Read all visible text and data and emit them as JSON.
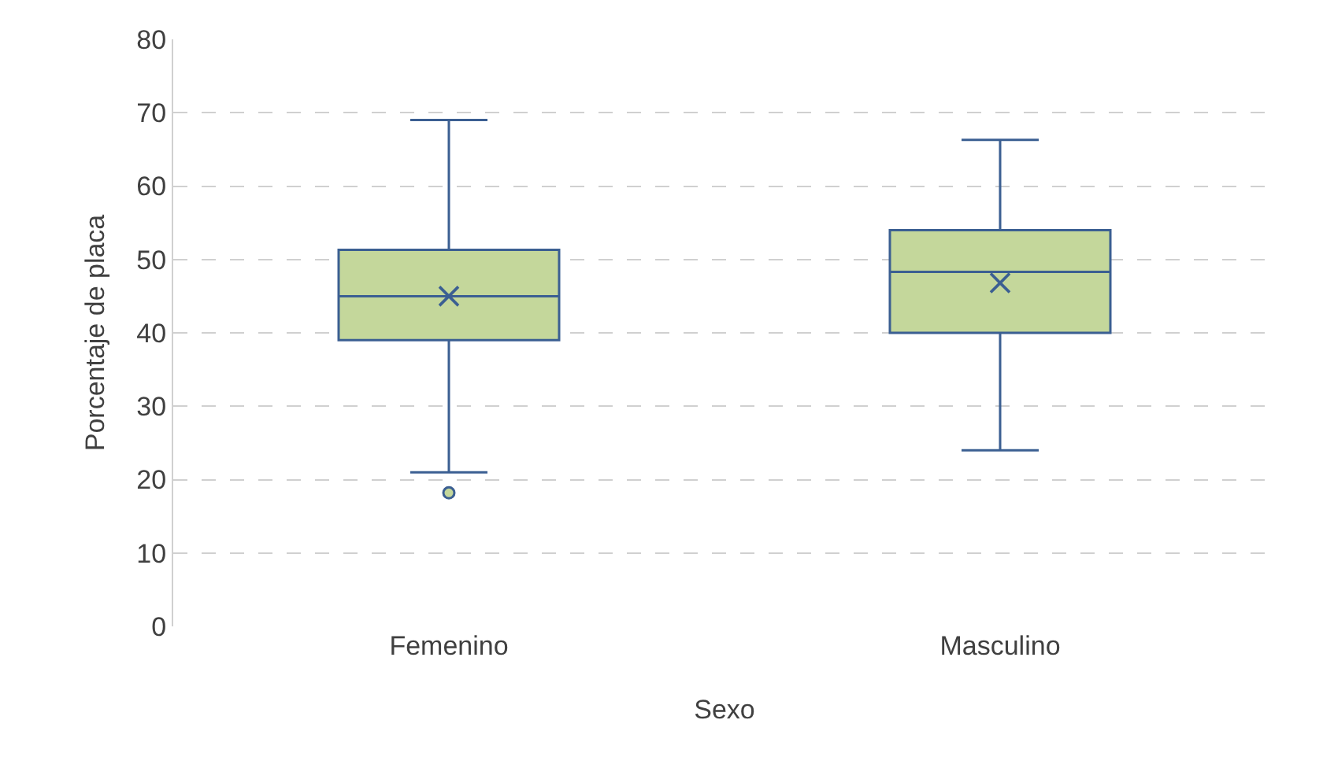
{
  "chart_data": {
    "type": "box",
    "categories": [
      "Femenino",
      "Masculino"
    ],
    "xlabel": "Sexo",
    "ylabel": "Porcentaje de placa",
    "ylim": [
      0,
      80
    ],
    "yticks": [
      0,
      10,
      20,
      30,
      40,
      50,
      60,
      70,
      80
    ],
    "grid": "y",
    "color": "#c4d79b",
    "boxes": [
      {
        "low": 21,
        "q1": 39,
        "median": 45,
        "q3": 51.3,
        "high": 69,
        "mean": 45,
        "outliers": [
          18.2
        ]
      },
      {
        "low": 24,
        "q1": 40,
        "median": 48.3,
        "q3": 54,
        "high": 66.3,
        "mean": 46.8
      }
    ]
  }
}
